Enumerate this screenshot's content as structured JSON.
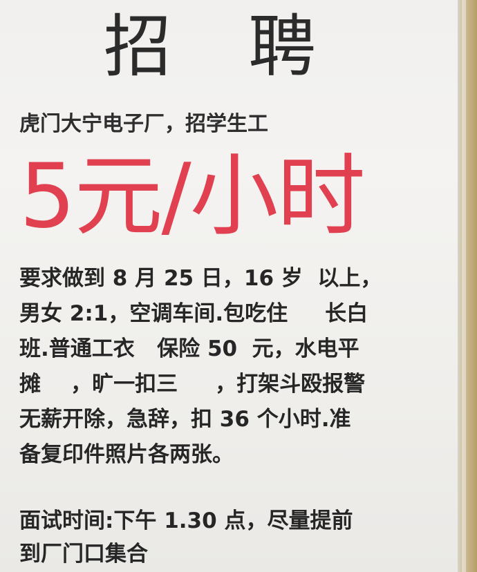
{
  "poster": {
    "title": "招  聘",
    "subtitle": "虎门大宁电子厂，招学生工",
    "wage": "5元/小时",
    "body_lines": [
      "要求做到 8 月 25 日，16 岁  以上，",
      "男女 2:1，空调车间.包吃住     长白",
      "班.普通工衣   保险 50  元，水电平",
      "摊    ，旷一扣三     ，打架斗殴报警",
      "无薪开除，急辞，扣 36 个小时.准",
      "备复印件照片各两张。"
    ],
    "interview_lines": [
      "面试时间:下午 1.30 点，尽量提前",
      "到厂门口集合"
    ]
  },
  "colors": {
    "wage_red": "#e0404f",
    "text_dark": "#262626",
    "paper": "#f1f0ee"
  }
}
